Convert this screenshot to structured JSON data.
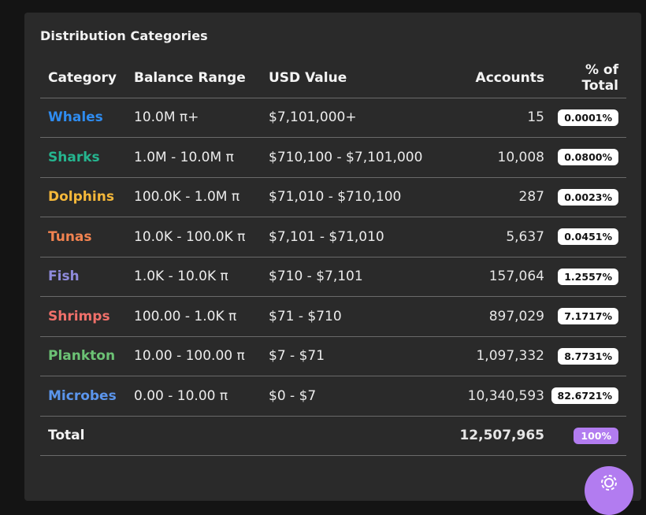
{
  "panel": {
    "title": "Distribution Categories"
  },
  "table": {
    "headers": {
      "category": "Category",
      "balance_range": "Balance Range",
      "usd_value": "USD Value",
      "accounts": "Accounts",
      "percent": "% of Total"
    },
    "rows": [
      {
        "category": "Whales",
        "color": "#2f8cf0",
        "range": "10.0M π+",
        "usd": "$7,101,000+",
        "accounts": "15",
        "percent": "0.0001%"
      },
      {
        "category": "Sharks",
        "color": "#25b58f",
        "range": "1.0M - 10.0M π",
        "usd": "$710,100 - $7,101,000",
        "accounts": "10,008",
        "percent": "0.0800%"
      },
      {
        "category": "Dolphins",
        "color": "#f5b83a",
        "range": "100.0K - 1.0M π",
        "usd": "$71,010 - $710,100",
        "accounts": "287",
        "percent": "0.0023%"
      },
      {
        "category": "Tunas",
        "color": "#f28350",
        "range": "10.0K - 100.0K π",
        "usd": "$7,101 - $71,010",
        "accounts": "5,637",
        "percent": "0.0451%"
      },
      {
        "category": "Fish",
        "color": "#8f8bdc",
        "range": "1.0K - 10.0K π",
        "usd": "$710 - $7,101",
        "accounts": "157,064",
        "percent": "1.2557%"
      },
      {
        "category": "Shrimps",
        "color": "#f0706a",
        "range": "100.00 - 1.0K π",
        "usd": "$71 - $710",
        "accounts": "897,029",
        "percent": "7.1717%"
      },
      {
        "category": "Plankton",
        "color": "#6cc275",
        "range": "10.00 - 100.00 π",
        "usd": "$7 - $71",
        "accounts": "1,097,332",
        "percent": "8.7731%"
      },
      {
        "category": "Microbes",
        "color": "#5b95ec",
        "range": "0.00 - 10.00 π",
        "usd": "$0 - $7",
        "accounts": "10,340,593",
        "percent": "82.6721%"
      }
    ],
    "total": {
      "label": "Total",
      "accounts": "12,507,965",
      "percent": "100%"
    }
  },
  "fab": {
    "icon": "settings-icon",
    "color": "#b27cf0"
  }
}
